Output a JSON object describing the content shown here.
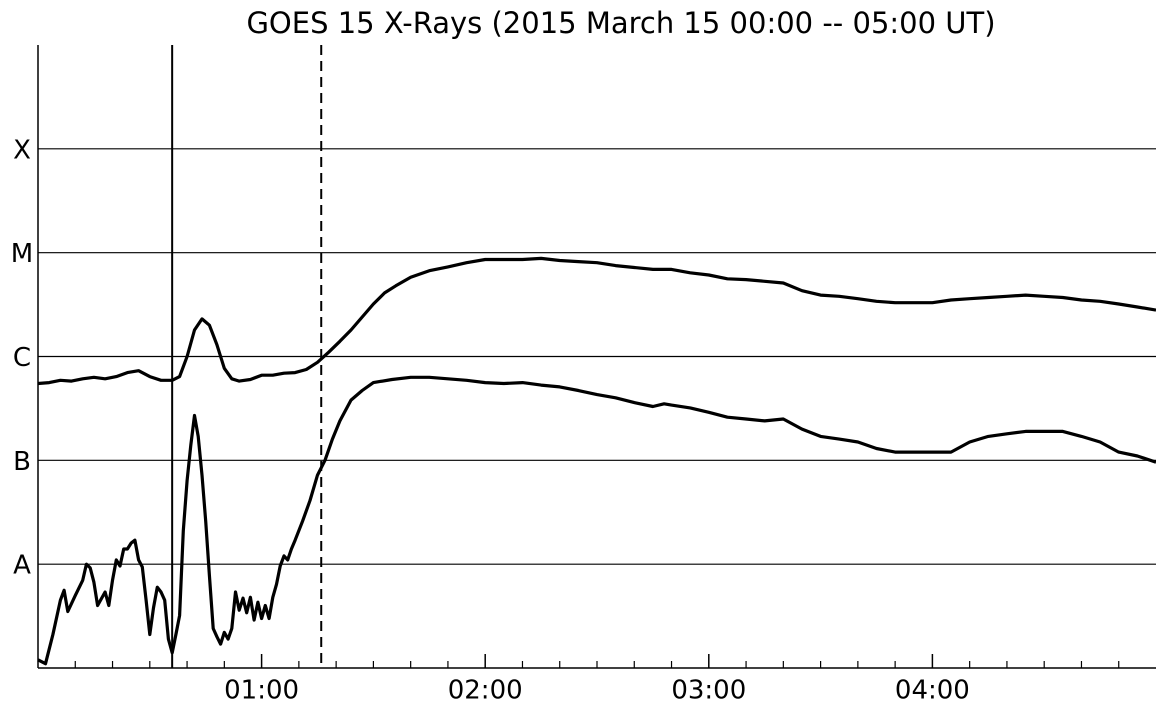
{
  "chart_data": {
    "type": "line",
    "title": "GOES 15 X-Rays (2015 March 15  00:00 -- 05:00 UT)",
    "log_y": true,
    "grid": true,
    "xlim": [
      0,
      300
    ],
    "ylim": [
      1e-09,
      0.001
    ],
    "xticks": [
      {
        "value": 60,
        "label": "01:00"
      },
      {
        "value": 120,
        "label": "02:00"
      },
      {
        "value": 180,
        "label": "03:00"
      },
      {
        "value": 240,
        "label": "04:00"
      }
    ],
    "xminorticks": [
      10,
      20,
      30,
      40,
      50,
      70,
      80,
      90,
      100,
      110,
      130,
      140,
      150,
      160,
      170,
      190,
      200,
      210,
      220,
      230,
      250,
      260,
      270,
      280,
      290
    ],
    "yticks": [
      {
        "value": 1e-08,
        "label": "A"
      },
      {
        "value": 1e-07,
        "label": "B"
      },
      {
        "value": 1e-06,
        "label": "C"
      },
      {
        "value": 1e-05,
        "label": "M"
      },
      {
        "value": 0.0001,
        "label": "X"
      }
    ],
    "vlines": [
      {
        "x": 36,
        "style": "solid"
      },
      {
        "x": 76,
        "style": "dashed"
      }
    ],
    "series": [
      {
        "color": "#000000",
        "x": [
          0,
          3,
          6,
          9,
          12,
          15,
          18,
          21,
          24,
          27,
          30,
          33,
          36,
          38,
          40,
          42,
          44,
          46,
          48,
          50,
          52,
          54,
          57,
          60,
          63,
          66,
          69,
          72,
          75,
          78,
          81,
          84,
          87,
          90,
          93,
          96,
          100,
          105,
          110,
          115,
          120,
          125,
          130,
          135,
          140,
          145,
          150,
          155,
          160,
          165,
          170,
          175,
          180,
          185,
          190,
          195,
          200,
          205,
          210,
          215,
          220,
          225,
          230,
          235,
          240,
          245,
          250,
          255,
          260,
          265,
          270,
          275,
          280,
          285,
          290,
          295,
          300
        ],
        "values": [
          5.5e-07,
          5.6e-07,
          5.9e-07,
          5.8e-07,
          6.1e-07,
          6.3e-07,
          6.1e-07,
          6.4e-07,
          7e-07,
          7.3e-07,
          6.4e-07,
          5.9e-07,
          5.9e-07,
          6.4e-07,
          1e-06,
          1.8e-06,
          2.3e-06,
          2e-06,
          1.3e-06,
          7.7e-07,
          6.1e-07,
          5.8e-07,
          6e-07,
          6.6e-07,
          6.6e-07,
          6.9e-07,
          7e-07,
          7.5e-07,
          8.8e-07,
          1.1e-06,
          1.4e-06,
          1.8e-06,
          2.4e-06,
          3.2e-06,
          4.1e-06,
          4.8e-06,
          5.8e-06,
          6.7e-06,
          7.3e-06,
          8e-06,
          8.6e-06,
          8.6e-06,
          8.6e-06,
          8.8e-06,
          8.4e-06,
          8.2e-06,
          8e-06,
          7.5e-06,
          7.2e-06,
          6.9e-06,
          6.9e-06,
          6.4e-06,
          6.1e-06,
          5.6e-06,
          5.5e-06,
          5.3e-06,
          5.1e-06,
          4.3e-06,
          3.9e-06,
          3.8e-06,
          3.6e-06,
          3.4e-06,
          3.3e-06,
          3.3e-06,
          3.3e-06,
          3.5e-06,
          3.6e-06,
          3.7e-06,
          3.8e-06,
          3.9e-06,
          3.8e-06,
          3.7e-06,
          3.5e-06,
          3.4e-06,
          3.2e-06,
          3e-06,
          2.8e-06
        ]
      },
      {
        "color": "#000000",
        "x": [
          0,
          2,
          4,
          6,
          7,
          8,
          10,
          12,
          13,
          14,
          15,
          16,
          18,
          19,
          20,
          21,
          22,
          23,
          24,
          25,
          26,
          27,
          28,
          29,
          30,
          31,
          32,
          33,
          34,
          35,
          36,
          37,
          38,
          39,
          40,
          41,
          42,
          43,
          44,
          45,
          46,
          47,
          48,
          49,
          50,
          51,
          52,
          53,
          54,
          55,
          56,
          57,
          58,
          59,
          60,
          61,
          62,
          63,
          64,
          65,
          66,
          67,
          68,
          69,
          71,
          73,
          75,
          77,
          79,
          81,
          84,
          87,
          90,
          95,
          100,
          105,
          110,
          115,
          120,
          125,
          130,
          135,
          140,
          145,
          150,
          155,
          160,
          165,
          168,
          170,
          175,
          180,
          185,
          190,
          195,
          200,
          205,
          210,
          215,
          220,
          225,
          230,
          235,
          240,
          245,
          250,
          255,
          260,
          265,
          270,
          275,
          280,
          285,
          290,
          295,
          300
        ],
        "values": [
          1.2e-09,
          1.1e-09,
          2.1e-09,
          4.5e-09,
          5.6e-09,
          3.5e-09,
          5e-09,
          7e-09,
          1e-08,
          9.2e-09,
          6.7e-09,
          4e-09,
          5.4e-09,
          4e-09,
          7e-09,
          1.1e-08,
          9.6e-09,
          1.4e-08,
          1.4e-08,
          1.6e-08,
          1.7e-08,
          1.1e-08,
          9.4e-09,
          4.5e-09,
          2.1e-09,
          3.8e-09,
          6e-09,
          5.4e-09,
          4.5e-09,
          1.9e-09,
          1.4e-09,
          2.1e-09,
          3.2e-09,
          2.1e-08,
          6.4e-08,
          1.4e-07,
          2.7e-07,
          1.7e-07,
          7.2e-08,
          2.6e-08,
          7.8e-09,
          2.4e-09,
          2e-09,
          1.7e-09,
          2.2e-09,
          1.9e-09,
          2.4e-09,
          5.4e-09,
          3.6e-09,
          4.7e-09,
          3.4e-09,
          4.8e-09,
          2.9e-09,
          4.3e-09,
          3e-09,
          4e-09,
          3e-09,
          4.8e-09,
          6.4e-09,
          9.6e-09,
          1.2e-08,
          1.1e-08,
          1.4e-08,
          1.7e-08,
          2.6e-08,
          4.1e-08,
          7.2e-08,
          1e-07,
          1.6e-07,
          2.4e-07,
          3.8e-07,
          4.7e-07,
          5.6e-07,
          6e-07,
          6.3e-07,
          6.3e-07,
          6.1e-07,
          5.9e-07,
          5.6e-07,
          5.5e-07,
          5.6e-07,
          5.3e-07,
          5.1e-07,
          4.7e-07,
          4.3e-07,
          4e-07,
          3.6e-07,
          3.3e-07,
          3.5e-07,
          3.4e-07,
          3.2e-07,
          2.9e-07,
          2.6e-07,
          2.5e-07,
          2.4e-07,
          2.5e-07,
          2e-07,
          1.7e-07,
          1.6e-07,
          1.5e-07,
          1.3e-07,
          1.2e-07,
          1.2e-07,
          1.2e-07,
          1.2e-07,
          1.5e-07,
          1.7e-07,
          1.8e-07,
          1.9e-07,
          1.9e-07,
          1.9e-07,
          1.7e-07,
          1.5e-07,
          1.2e-07,
          1.1e-07,
          9.6e-08
        ]
      }
    ]
  }
}
